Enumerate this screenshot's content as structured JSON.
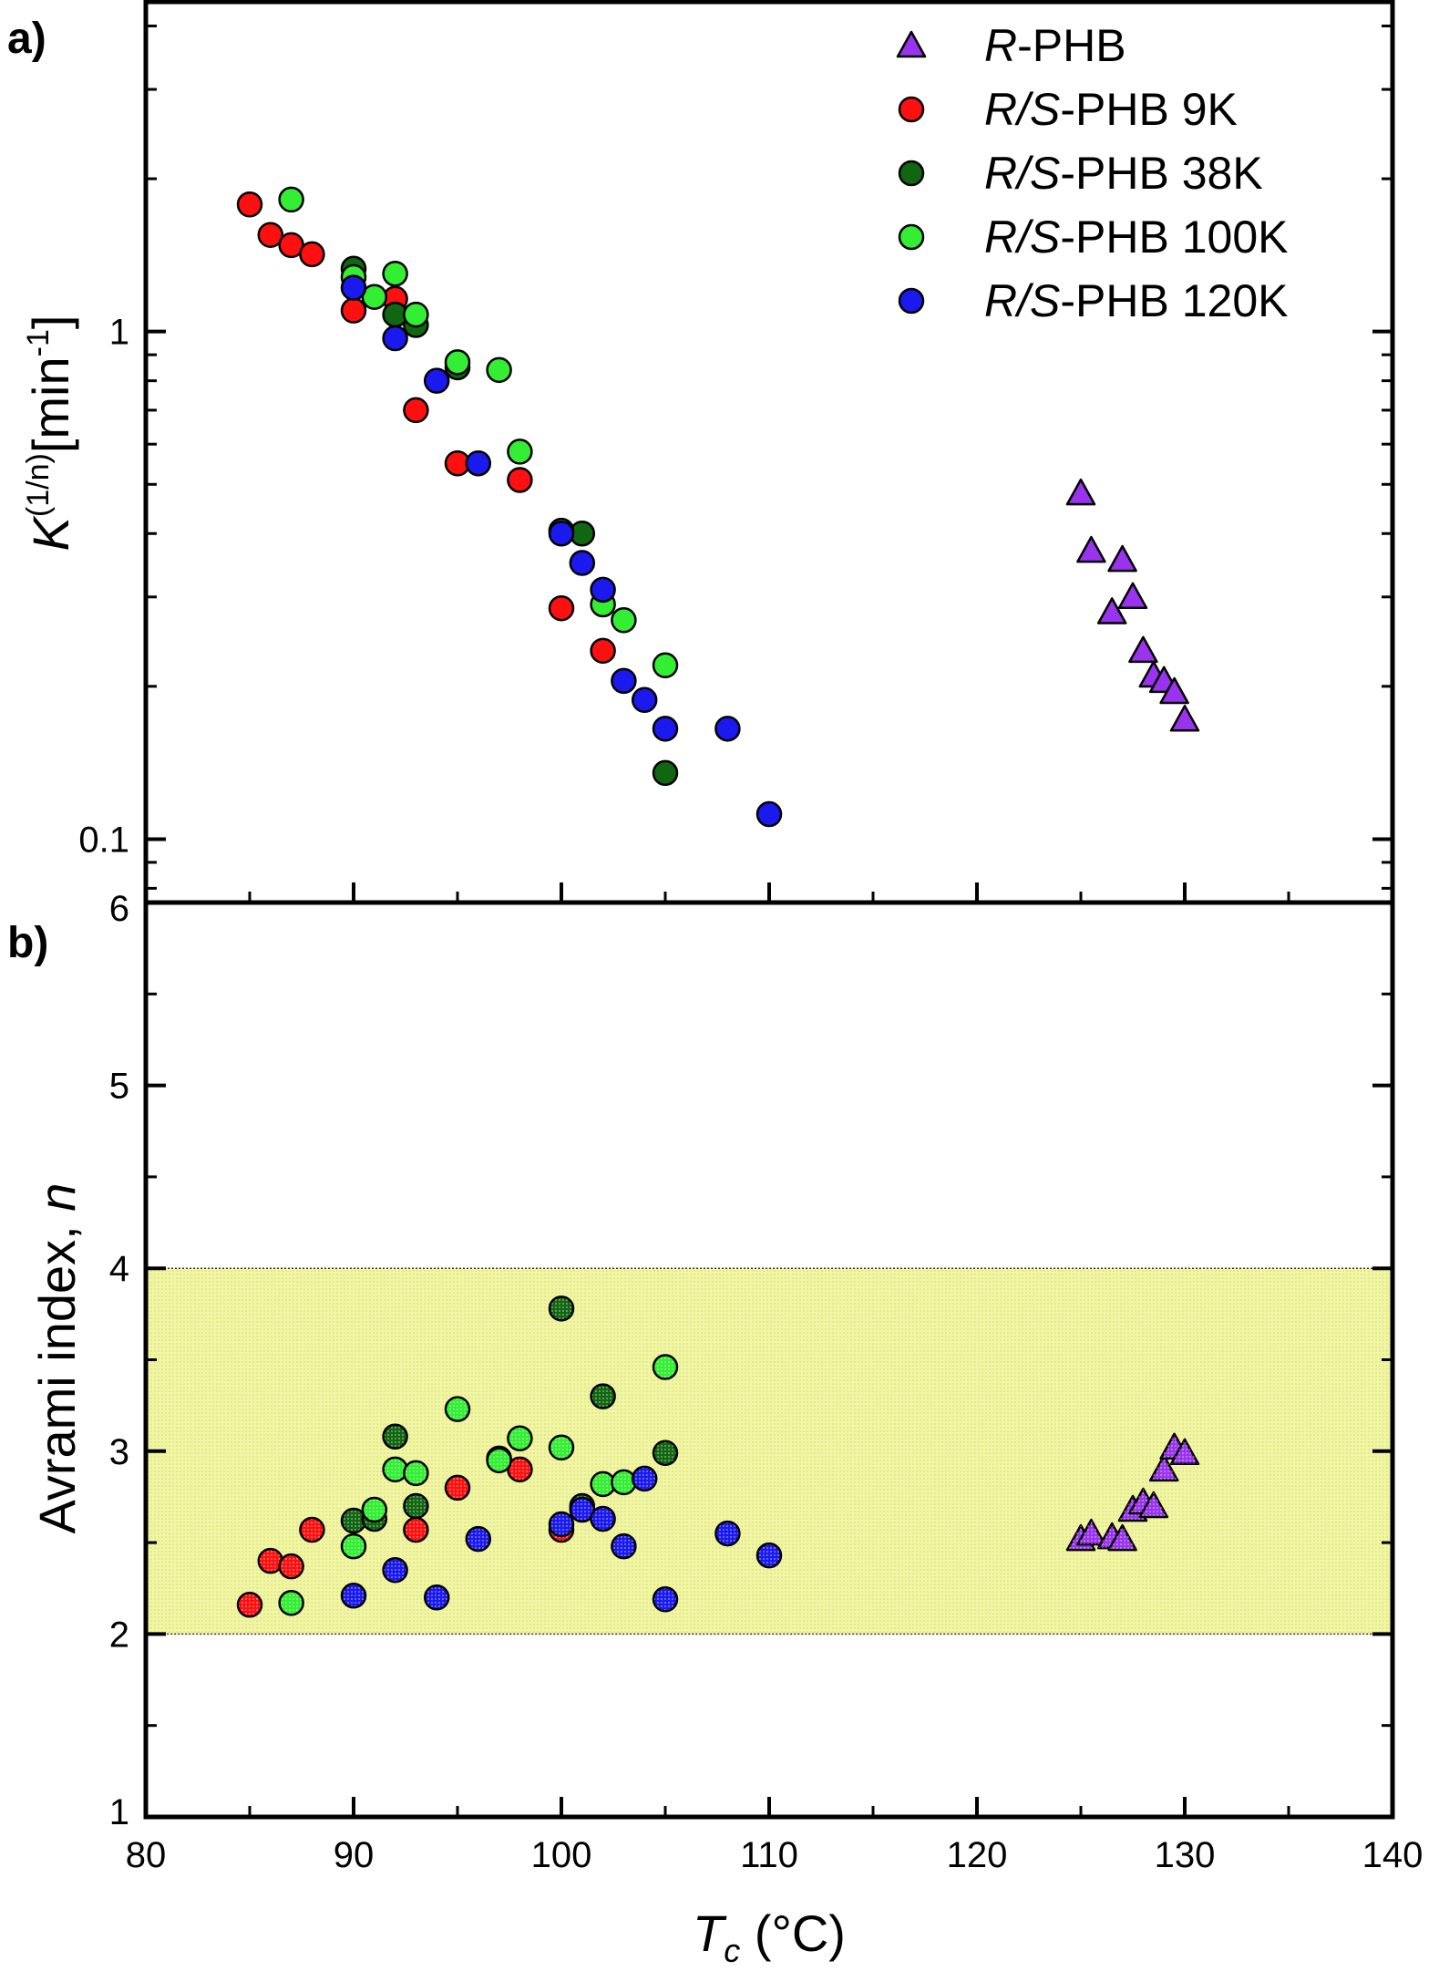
{
  "chart_data": [
    {
      "id": "panel-a",
      "type": "scatter",
      "panel_label": "a)",
      "yscale": "log",
      "ylabel": {
        "italic": "K",
        "sup": "(1/n)",
        "rest": "[min",
        "unit_sup": "-1",
        "close": "]"
      },
      "ylim": [
        0.075,
        4.5
      ],
      "xlim": [
        80,
        140
      ],
      "yticks": [
        {
          "value": 0.1,
          "label": "0.1"
        },
        {
          "value": 1,
          "label": "1"
        }
      ],
      "ticks_shown_inside": true,
      "legend_position": "top-right",
      "series": [
        {
          "name": "R-PHB",
          "legend_italic": "R",
          "legend_rest": "-PHB",
          "marker": "triangle",
          "color": "#9933ee",
          "points": [
            [
              125,
              0.48
            ],
            [
              125.5,
              0.37
            ],
            [
              126.5,
              0.28
            ],
            [
              127,
              0.355
            ],
            [
              127.5,
              0.3
            ],
            [
              128,
              0.235
            ],
            [
              128.5,
              0.21
            ],
            [
              129,
              0.205
            ],
            [
              129.5,
              0.195
            ],
            [
              130,
              0.172
            ]
          ]
        },
        {
          "name": "R/S-PHB 9K",
          "legend_italic": "R/S",
          "legend_rest": "-PHB 9K",
          "marker": "circle",
          "color": "#ff1010",
          "points": [
            [
              85,
              1.78
            ],
            [
              86,
              1.55
            ],
            [
              87,
              1.48
            ],
            [
              88,
              1.42
            ],
            [
              90,
              1.1
            ],
            [
              92,
              1.16
            ],
            [
              93,
              0.7
            ],
            [
              95,
              0.55
            ],
            [
              98,
              0.51
            ],
            [
              100,
              0.285
            ],
            [
              102,
              0.235
            ]
          ]
        },
        {
          "name": "R/S-PHB 38K",
          "legend_italic": "R/S",
          "legend_rest": "-PHB 38K",
          "marker": "circle",
          "color": "#116611",
          "points": [
            [
              90,
              1.33
            ],
            [
              92,
              1.08
            ],
            [
              93,
              1.03
            ],
            [
              95,
              0.85
            ],
            [
              100,
              0.405
            ],
            [
              101,
              0.4
            ],
            [
              105,
              0.135
            ]
          ]
        },
        {
          "name": "R/S-PHB 100K",
          "legend_italic": "R/S",
          "legend_rest": "-PHB 100K",
          "marker": "circle",
          "color": "#33ee33",
          "points": [
            [
              87,
              1.82
            ],
            [
              90,
              1.28
            ],
            [
              91,
              1.17
            ],
            [
              92,
              1.3
            ],
            [
              93,
              1.08
            ],
            [
              95,
              0.87
            ],
            [
              97,
              0.84
            ],
            [
              98,
              0.58
            ],
            [
              100,
              0.405
            ],
            [
              102,
              0.29
            ],
            [
              103,
              0.27
            ],
            [
              105,
              0.22
            ]
          ]
        },
        {
          "name": "R/S-PHB 120K",
          "legend_italic": "R/S",
          "legend_rest": "-PHB 120K",
          "marker": "circle",
          "color": "#1a1aee",
          "points": [
            [
              90,
              1.22
            ],
            [
              92,
              0.97
            ],
            [
              94,
              0.8
            ],
            [
              96,
              0.55
            ],
            [
              100,
              0.4
            ],
            [
              101,
              0.35
            ],
            [
              102,
              0.31
            ],
            [
              103,
              0.205
            ],
            [
              104,
              0.188
            ],
            [
              105,
              0.165
            ],
            [
              108,
              0.165
            ],
            [
              110,
              0.112
            ]
          ]
        }
      ]
    },
    {
      "id": "panel-b",
      "type": "scatter",
      "panel_label": "b)",
      "yscale": "linear",
      "ylabel": {
        "text": "Avrami index, ",
        "italic": "n"
      },
      "ylim": [
        1,
        6
      ],
      "xlim": [
        80,
        140
      ],
      "xlabel": {
        "italic": "T",
        "sub": "c",
        "rest": " (°C)"
      },
      "xticks": [
        80,
        90,
        100,
        110,
        120,
        130,
        140
      ],
      "yticks": [
        1,
        2,
        3,
        4,
        5,
        6
      ],
      "highlight_band": {
        "y0": 2,
        "y1": 4,
        "color": "#f1f5a8"
      },
      "series": [
        {
          "name": "R-PHB",
          "marker": "triangle",
          "color": "#9933ee",
          "points": [
            [
              125,
              2.52
            ],
            [
              125.5,
              2.55
            ],
            [
              126.5,
              2.53
            ],
            [
              127,
              2.52
            ],
            [
              127.5,
              2.68
            ],
            [
              128,
              2.72
            ],
            [
              128.5,
              2.7
            ],
            [
              129,
              2.9
            ],
            [
              129.5,
              3.02
            ],
            [
              130,
              2.99
            ]
          ]
        },
        {
          "name": "R/S-PHB 9K",
          "marker": "circle",
          "color": "#ff1010",
          "points": [
            [
              85,
              2.16
            ],
            [
              86,
              2.4
            ],
            [
              87,
              2.37
            ],
            [
              88,
              2.57
            ],
            [
              93,
              2.57
            ],
            [
              95,
              2.8
            ],
            [
              98,
              2.9
            ],
            [
              100,
              2.57
            ]
          ]
        },
        {
          "name": "R/S-PHB 38K",
          "marker": "circle",
          "color": "#116611",
          "points": [
            [
              90,
              2.62
            ],
            [
              91,
              2.63
            ],
            [
              92,
              3.08
            ],
            [
              93,
              2.7
            ],
            [
              97,
              2.96
            ],
            [
              100,
              3.78
            ],
            [
              101,
              2.7
            ],
            [
              102,
              3.3
            ],
            [
              105,
              2.99
            ]
          ]
        },
        {
          "name": "R/S-PHB 100K",
          "marker": "circle",
          "color": "#33ee33",
          "points": [
            [
              87,
              2.17
            ],
            [
              90,
              2.48
            ],
            [
              91,
              2.68
            ],
            [
              92,
              2.9
            ],
            [
              93,
              2.88
            ],
            [
              95,
              3.23
            ],
            [
              97,
              2.95
            ],
            [
              98,
              3.07
            ],
            [
              100,
              3.02
            ],
            [
              102,
              2.82
            ],
            [
              103,
              2.83
            ],
            [
              105,
              3.46
            ]
          ]
        },
        {
          "name": "R/S-PHB 120K",
          "marker": "circle",
          "color": "#1a1aee",
          "points": [
            [
              90,
              2.21
            ],
            [
              92,
              2.35
            ],
            [
              94,
              2.2
            ],
            [
              96,
              2.52
            ],
            [
              100,
              2.6
            ],
            [
              101,
              2.68
            ],
            [
              102,
              2.63
            ],
            [
              103,
              2.48
            ],
            [
              104,
              2.85
            ],
            [
              105,
              2.19
            ],
            [
              108,
              2.55
            ],
            [
              110,
              2.43
            ]
          ]
        }
      ]
    }
  ]
}
